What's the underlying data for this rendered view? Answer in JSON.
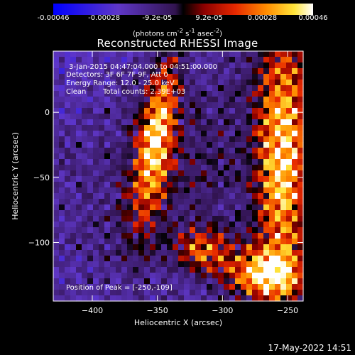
{
  "colorbar": {
    "tick_labels": [
      "-0.00046",
      "-0.00028",
      "-9.2e-05",
      "9.2e-05",
      "0.00028",
      "0.00046"
    ],
    "tick_values": [
      -0.00046,
      -0.00028,
      -9.2e-05,
      9.2e-05,
      0.00028,
      0.00046
    ],
    "range": [
      -0.00046,
      0.00046
    ],
    "units_prefix": "(photons cm",
    "units_exp1": "-2",
    "units_mid": " s",
    "units_exp2": "-1",
    "units_mid2": " asec",
    "units_exp3": "-2",
    "units_suffix": ")"
  },
  "chart_data": {
    "type": "heatmap",
    "title": "Reconstructed RHESSI Image",
    "xlabel": "Heliocentric X (arcsec)",
    "ylabel": "Heliocentric Y (arcsec)",
    "xlim": [
      -430,
      -238
    ],
    "ylim": [
      -145,
      47
    ],
    "x_ticks": [
      -400,
      -350,
      -300,
      -250
    ],
    "y_ticks": [
      0,
      -50,
      -100
    ],
    "x_tick_labels": [
      "−400",
      "−350",
      "−300",
      "−250"
    ],
    "y_tick_labels": [
      "0",
      "−50",
      "−100"
    ],
    "annotations": {
      "time": "3-Jan-2015 04:47:04.000 to 04:51:00.000",
      "detectors": "Detectors: 3F 6F 7F 9F, Att 0",
      "energy": "Energy Range: 12.0 - 25.0 keV",
      "clean_label": "Clean",
      "counts": "Total counts: 2.39E+03",
      "peak": "Position of Peak = [-250,-109]"
    },
    "peak": [
      -250,
      -109
    ]
  },
  "timestamp": "17-May-2022 14:51"
}
